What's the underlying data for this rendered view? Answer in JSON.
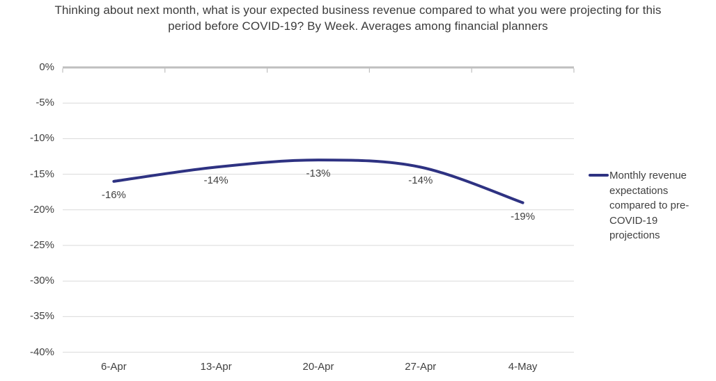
{
  "title": {
    "line1": "Thinking about next month, what is your expected business revenue compared to what you were projecting for this",
    "line2": "period before COVID-19? By Week. Averages among financial planners"
  },
  "legend": {
    "label": "Monthly revenue expectations compared to pre-COVID-19 projections",
    "swatch_color": "#2E3282"
  },
  "chart_data": {
    "type": "line",
    "title": "Thinking about next month, what is your expected business revenue compared to what you were projecting for this period before COVID-19? By Week. Averages among financial planners",
    "categories": [
      "6-Apr",
      "13-Apr",
      "20-Apr",
      "27-Apr",
      "4-May"
    ],
    "series": [
      {
        "name": "Monthly revenue expectations compared to pre-COVID-19 projections",
        "values": [
          -16,
          -14,
          -13,
          -14,
          -19
        ],
        "color": "#2E3282"
      }
    ],
    "data_labels": [
      "-16%",
      "-14%",
      "-13%",
      "-14%",
      "-19%"
    ],
    "y_tick_labels": [
      "0%",
      "-5%",
      "-10%",
      "-15%",
      "-20%",
      "-25%",
      "-30%",
      "-35%",
      "-40%"
    ],
    "ylim": [
      -40,
      0
    ],
    "y_tick_step": -5,
    "xlabel": "",
    "ylabel": "",
    "grid": true,
    "smooth": true,
    "legend_position": "right",
    "colors": {
      "axis": "#BFBFBF",
      "grid": "#D9D9D9",
      "text": "#404040"
    }
  }
}
